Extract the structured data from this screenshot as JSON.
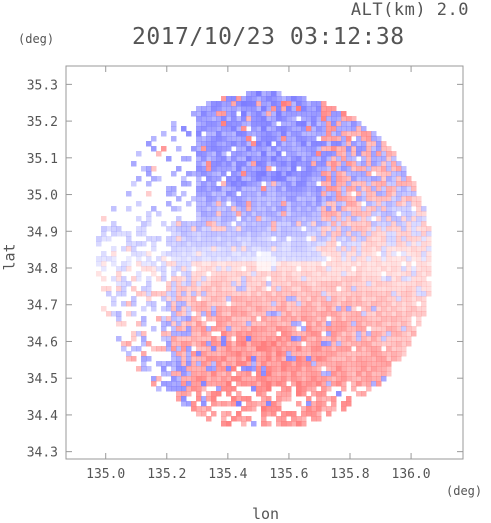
{
  "header": {
    "altitude_label": "ALT(km)  2.0",
    "timestamp": "2017/10/23 03:12:38",
    "unit_top": "(deg)",
    "unit_bottom": "(deg)"
  },
  "chart_data": {
    "type": "heatmap",
    "title": "2017/10/23 03:12:38",
    "xlabel": "lon",
    "ylabel": "lat",
    "xlim": [
      134.87,
      136.17
    ],
    "ylim": [
      34.28,
      35.35
    ],
    "xticks": [
      135.0,
      135.2,
      135.4,
      135.6,
      135.8,
      136.0
    ],
    "xtick_labels": [
      "135.0",
      "135.2",
      "135.4",
      "135.6",
      "135.8",
      "136.0"
    ],
    "yticks": [
      34.3,
      34.4,
      34.5,
      34.6,
      34.7,
      34.8,
      34.9,
      35.0,
      35.1,
      35.2,
      35.3
    ],
    "ytick_labels": [
      "34.3",
      "34.4",
      "34.5",
      "34.6",
      "34.7",
      "34.8",
      "34.9",
      "35.0",
      "35.1",
      "35.2",
      "35.3"
    ],
    "radar_center": {
      "lon": 135.52,
      "lat": 34.82
    },
    "radar_range_deg": 0.55,
    "colors": {
      "negative": "#7b7bff",
      "positive": "#ff7b7b",
      "zero": "#ffffff"
    },
    "grid": false
  }
}
